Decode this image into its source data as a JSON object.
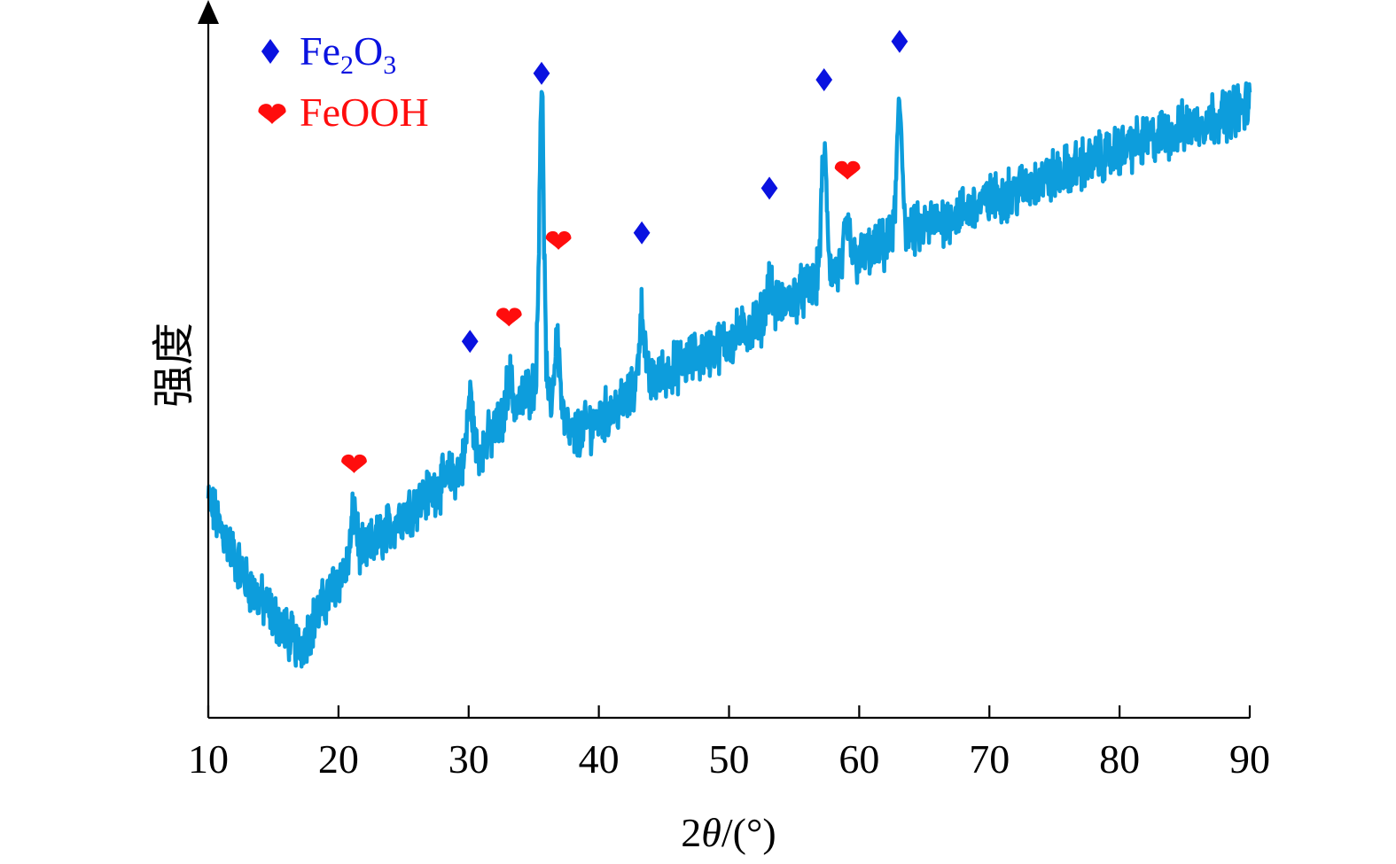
{
  "chart_data": {
    "type": "line",
    "title": "",
    "xlabel_prefix": "2",
    "xlabel_italic": "θ",
    "xlabel_suffix": "/(°)",
    "ylabel": "强度",
    "xlim": [
      10,
      90
    ],
    "ylim": [
      0,
      100
    ],
    "x_ticks": [
      10,
      20,
      30,
      40,
      50,
      60,
      70,
      80,
      90
    ],
    "y_ticks_shown": false,
    "grid": false,
    "legend_position": "top-left",
    "series": [
      {
        "color": "#0d9ddc",
        "baseline": [
          [
            10,
            34
          ],
          [
            13,
            21
          ],
          [
            17,
            11
          ],
          [
            20,
            22
          ],
          [
            25,
            32
          ],
          [
            30,
            40
          ],
          [
            35,
            52
          ],
          [
            38,
            44
          ],
          [
            45,
            54
          ],
          [
            50,
            59
          ],
          [
            55,
            66
          ],
          [
            60,
            72
          ],
          [
            65,
            77
          ],
          [
            70,
            81
          ],
          [
            80,
            89
          ],
          [
            90,
            96
          ]
        ],
        "peaks": [
          [
            21.2,
            8
          ],
          [
            30.1,
            10
          ],
          [
            33.1,
            6
          ],
          [
            35.6,
            48
          ],
          [
            36.8,
            12
          ],
          [
            43.3,
            12
          ],
          [
            53.1,
            5
          ],
          [
            57.3,
            19
          ],
          [
            59.1,
            6
          ],
          [
            63.1,
            20
          ]
        ],
        "noise_amplitude": 3.2
      }
    ],
    "legend": [
      {
        "marker": "diamond",
        "color": "#0a12e0",
        "label_main": "Fe",
        "label_sub1": "2",
        "label_mid": "O",
        "label_sub2": "3"
      },
      {
        "marker": "heart",
        "color": "#ff0d0d",
        "label": "FeOOH"
      }
    ],
    "annotations": [
      {
        "marker": "diamond",
        "x": 30.1,
        "y": 59
      },
      {
        "marker": "diamond",
        "x": 35.6,
        "y": 101
      },
      {
        "marker": "diamond",
        "x": 43.3,
        "y": 76
      },
      {
        "marker": "diamond",
        "x": 53.1,
        "y": 83
      },
      {
        "marker": "diamond",
        "x": 57.3,
        "y": 100
      },
      {
        "marker": "diamond",
        "x": 63.1,
        "y": 106
      },
      {
        "marker": "heart",
        "x": 21.2,
        "y": 40
      },
      {
        "marker": "heart",
        "x": 33.1,
        "y": 63
      },
      {
        "marker": "heart",
        "x": 36.9,
        "y": 75
      },
      {
        "marker": "heart",
        "x": 59.1,
        "y": 86
      }
    ]
  }
}
